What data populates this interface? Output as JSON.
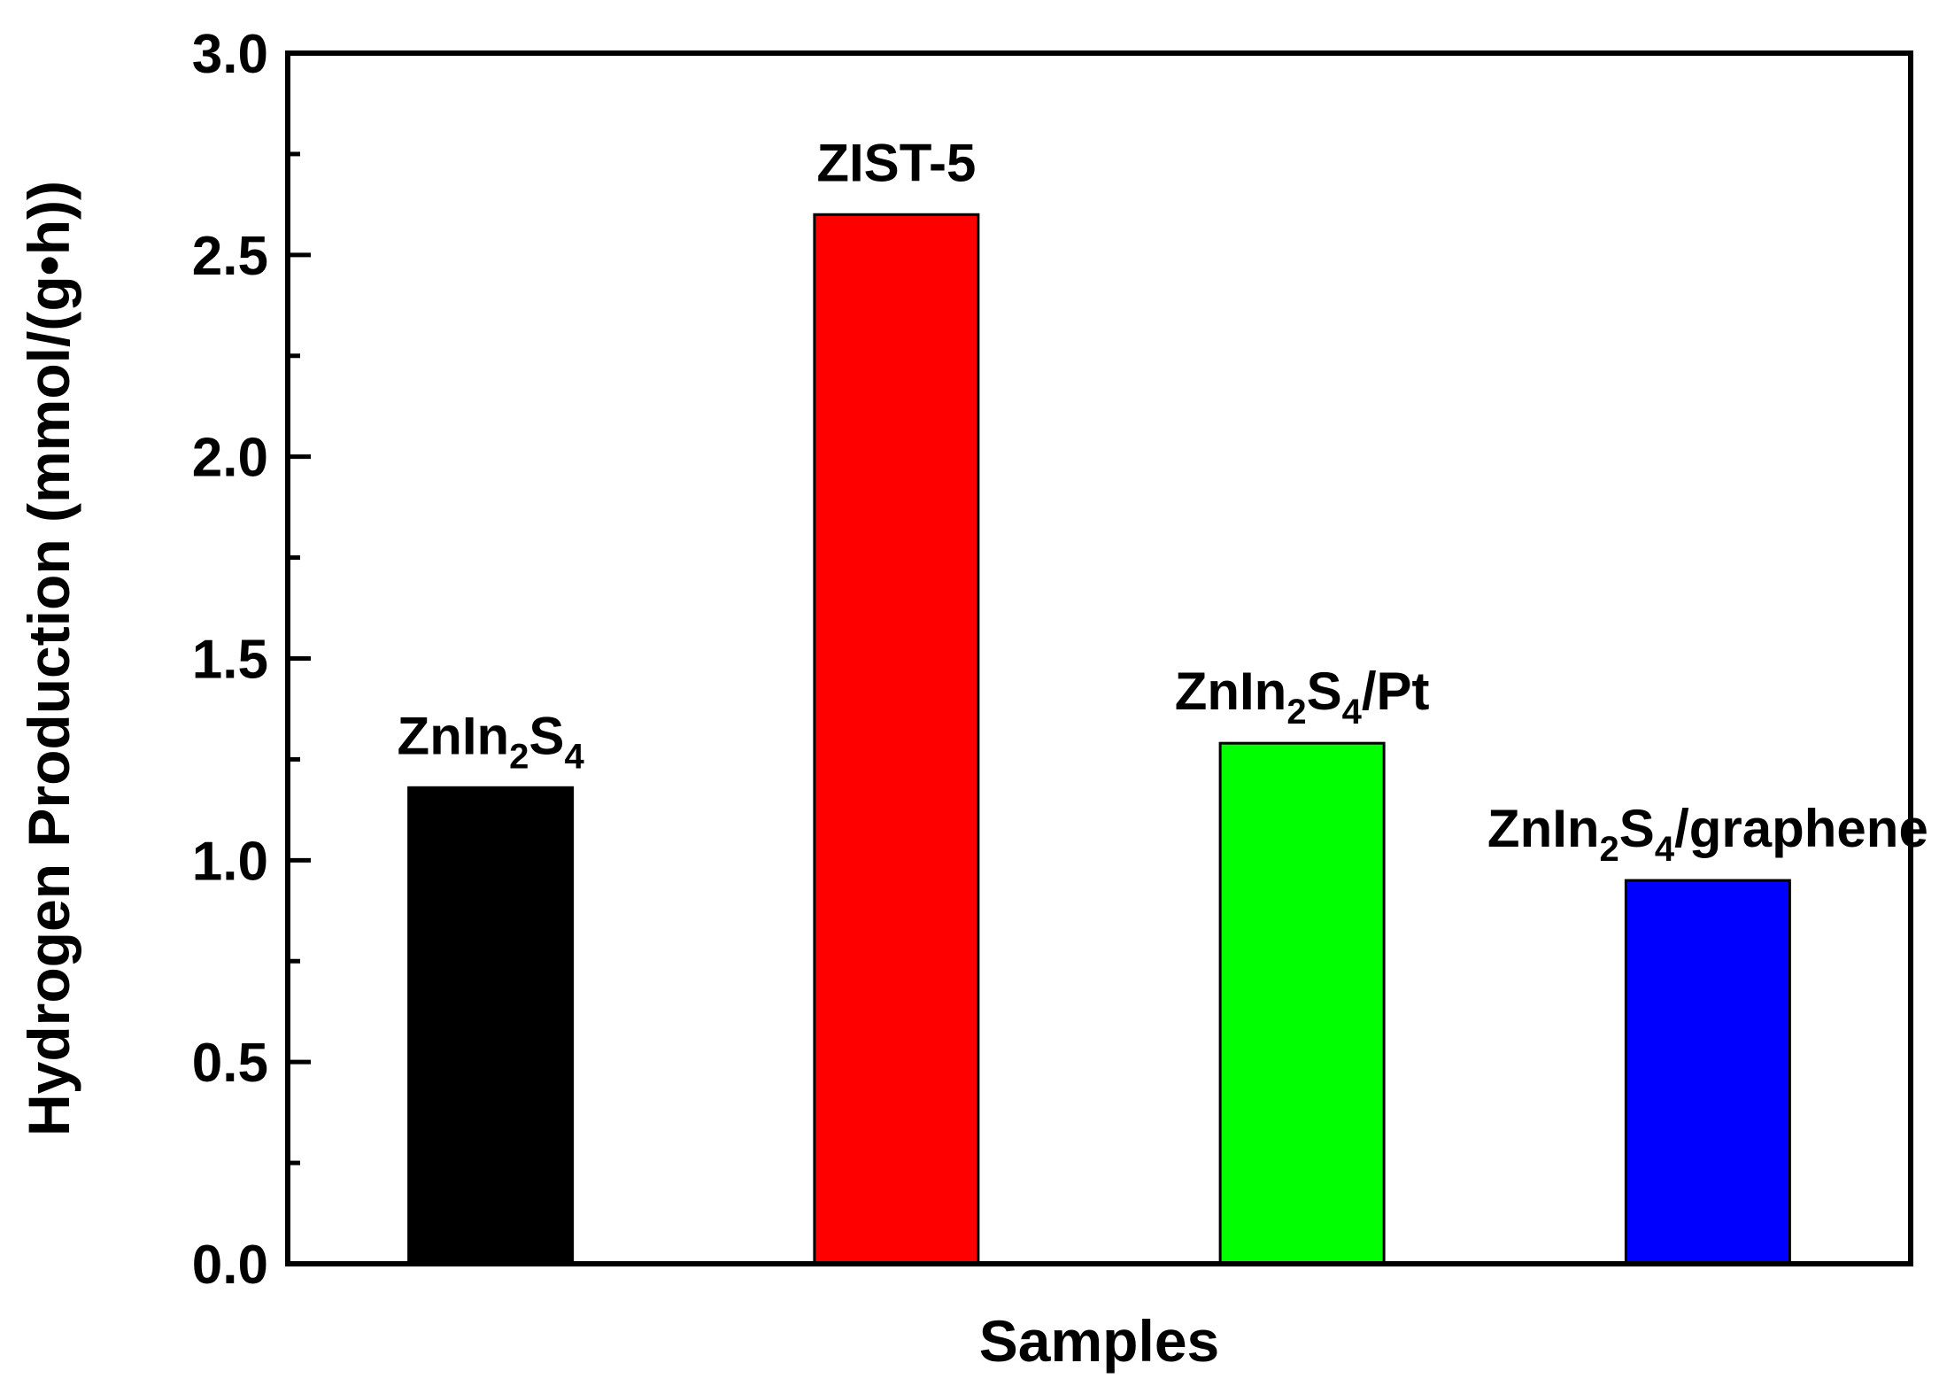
{
  "chart_data": {
    "type": "bar",
    "title": "",
    "xlabel": "Samples",
    "ylabel": "Hydrogen Production (mmol/(g•h))",
    "ylim": [
      0,
      3.0
    ],
    "yticks": [
      "0.0",
      "0.5",
      "1.0",
      "1.5",
      "2.0",
      "2.5",
      "3.0"
    ],
    "grid": false,
    "categories": [
      {
        "label": "ZnIn2S4",
        "parts": [
          {
            "t": "ZnIn"
          },
          {
            "t": "2",
            "sub": true
          },
          {
            "t": "S"
          },
          {
            "t": "4",
            "sub": true
          }
        ]
      },
      {
        "label": "ZIST-5",
        "parts": [
          {
            "t": "ZIST-5"
          }
        ]
      },
      {
        "label": "ZnIn2S4/Pt",
        "parts": [
          {
            "t": "ZnIn"
          },
          {
            "t": "2",
            "sub": true
          },
          {
            "t": "S"
          },
          {
            "t": "4",
            "sub": true
          },
          {
            "t": "/Pt"
          }
        ]
      },
      {
        "label": "ZnIn2S4/graphene",
        "parts": [
          {
            "t": "ZnIn"
          },
          {
            "t": "2",
            "sub": true
          },
          {
            "t": "S"
          },
          {
            "t": "4",
            "sub": true
          },
          {
            "t": "/graphene"
          }
        ]
      }
    ],
    "values": [
      1.18,
      2.6,
      1.29,
      0.95
    ],
    "colors": [
      "#000000",
      "#ff0000",
      "#00ff00",
      "#0000ff"
    ]
  }
}
